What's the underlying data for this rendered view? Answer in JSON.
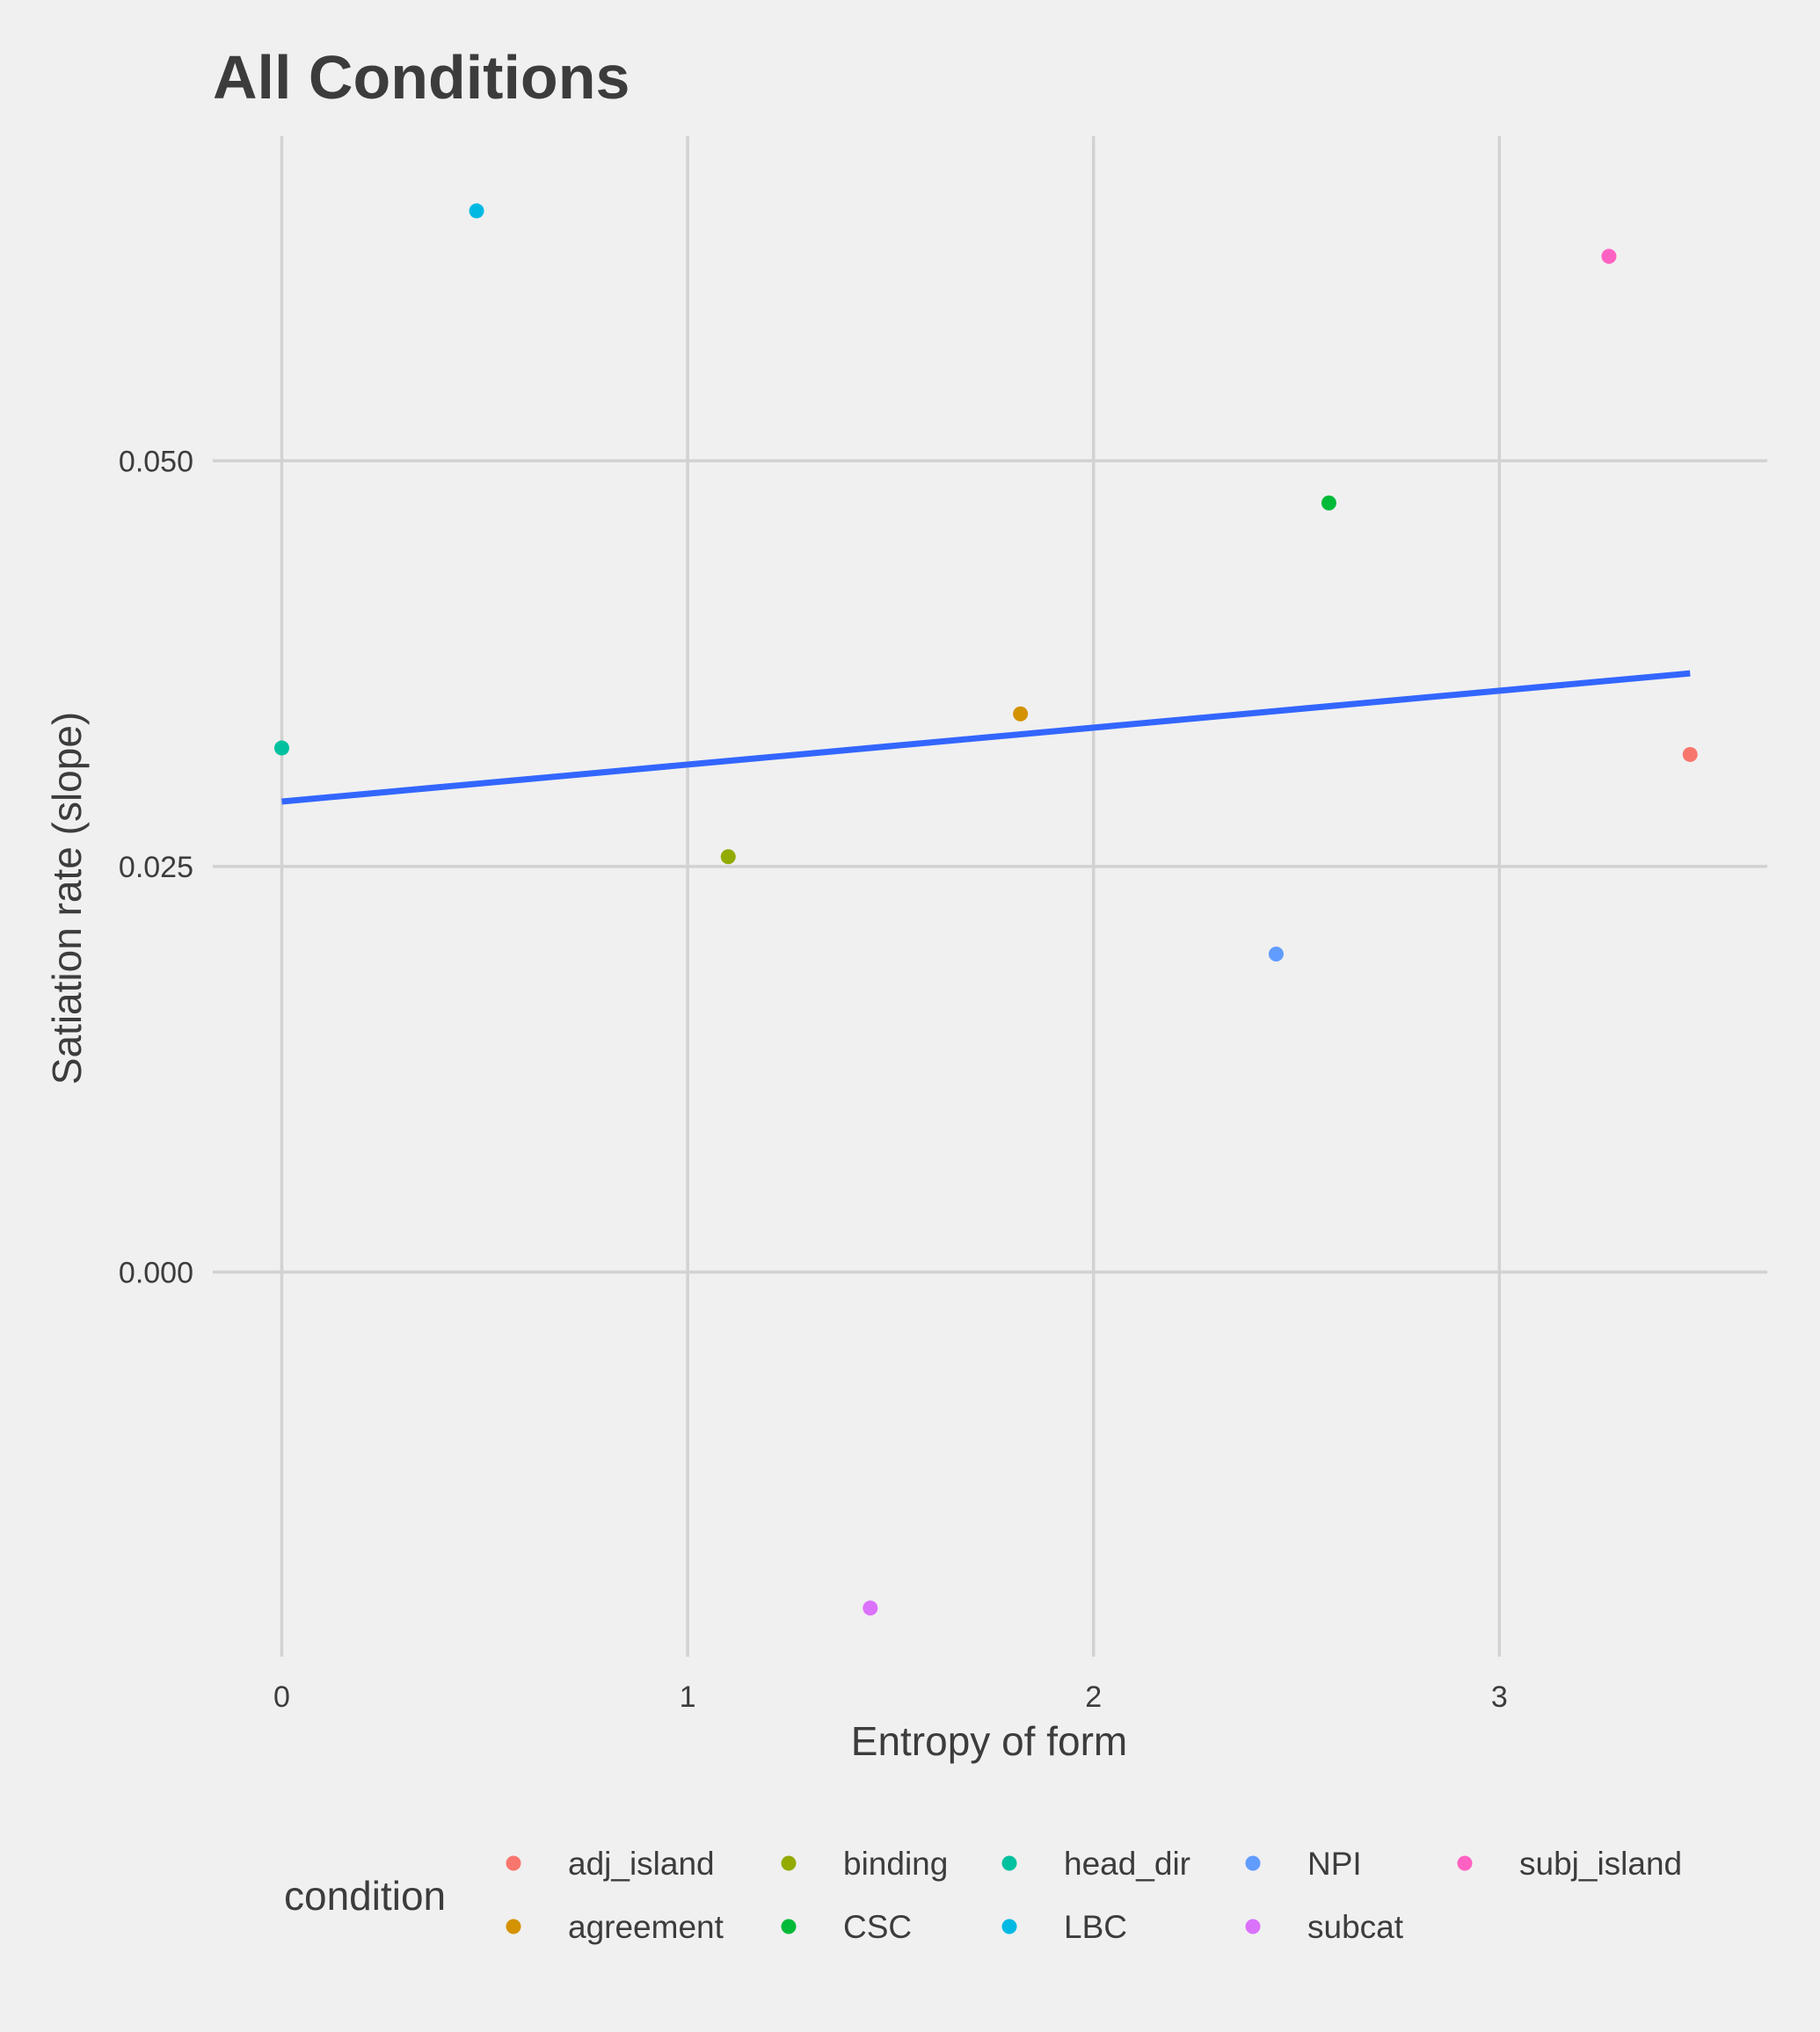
{
  "chart_data": {
    "type": "scatter",
    "title": "All Conditions",
    "xlabel": "Entropy of form",
    "ylabel": "Satiation rate (slope)",
    "xlim": [
      -0.17,
      3.66
    ],
    "ylim": [
      -0.0237,
      0.07
    ],
    "x_ticks": [
      0,
      1,
      2,
      3
    ],
    "x_tick_labels": [
      "0",
      "1",
      "2",
      "3"
    ],
    "y_ticks": [
      0.0,
      0.025,
      0.05
    ],
    "y_tick_labels": [
      "0.000",
      "0.025",
      "0.050"
    ],
    "grid": "major only",
    "legend_title": "condition",
    "legend_position": "bottom",
    "series": [
      {
        "name": "adj_island",
        "color": "#F8766D",
        "x": 3.47,
        "y": 0.0319
      },
      {
        "name": "agreement",
        "color": "#D39200",
        "x": 1.82,
        "y": 0.0344
      },
      {
        "name": "binding",
        "color": "#93AA00",
        "x": 1.1,
        "y": 0.0256
      },
      {
        "name": "CSC",
        "color": "#00BA38",
        "x": 2.58,
        "y": 0.0474
      },
      {
        "name": "head_dir",
        "color": "#00C19F",
        "x": 0.0,
        "y": 0.0323
      },
      {
        "name": "LBC",
        "color": "#00B9E3",
        "x": 0.48,
        "y": 0.0654
      },
      {
        "name": "NPI",
        "color": "#619CFF",
        "x": 2.45,
        "y": 0.0196
      },
      {
        "name": "subcat",
        "color": "#DB72FB",
        "x": 1.45,
        "y": -0.0207
      },
      {
        "name": "subj_island",
        "color": "#FF61C3",
        "x": 3.27,
        "y": 0.0626
      }
    ],
    "trend_line": {
      "color": "#3366FF",
      "x": [
        0.0,
        3.47
      ],
      "y": [
        0.029,
        0.0369
      ]
    }
  }
}
